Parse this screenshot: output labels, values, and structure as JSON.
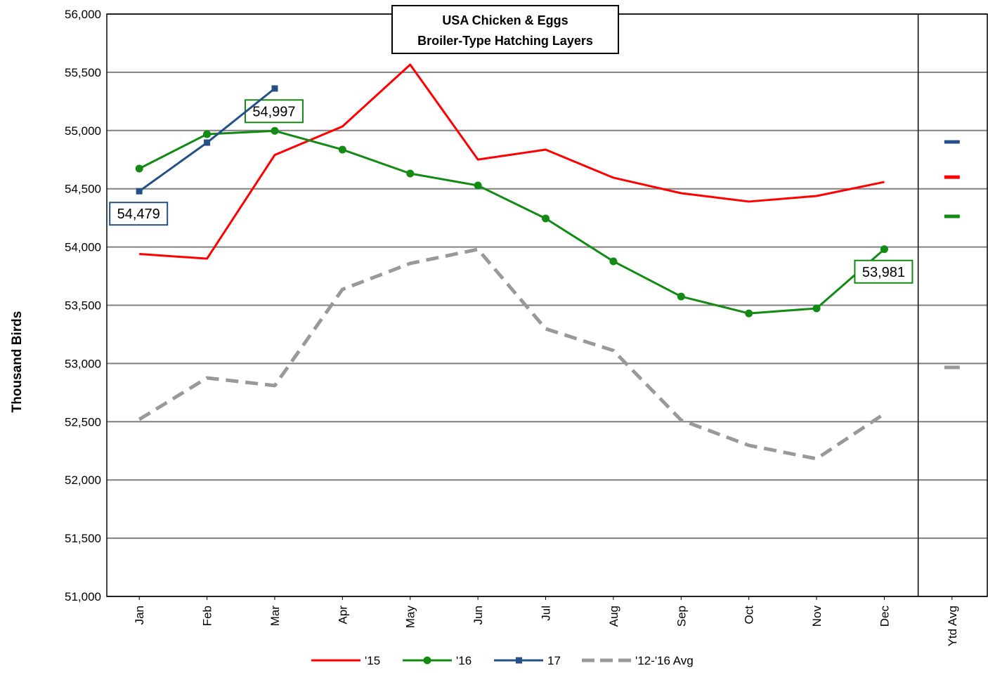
{
  "chart_data": {
    "type": "line",
    "title": "USA Chicken & Eggs",
    "subtitle": "Broiler-Type Hatching Layers",
    "y_label": "Thousand Birds",
    "categories": [
      "Jan",
      "Feb",
      "Mar",
      "Apr",
      "May",
      "Jun",
      "Jul",
      "Aug",
      "Sep",
      "Oct",
      "Nov",
      "Dec",
      "Ytd Avg"
    ],
    "ylim": [
      51000,
      56000
    ],
    "yticks": [
      {
        "value": 51000,
        "label": "51,000"
      },
      {
        "value": 51500,
        "label": "51,500"
      },
      {
        "value": 52000,
        "label": "52,000"
      },
      {
        "value": 52500,
        "label": "52,500"
      },
      {
        "value": 53000,
        "label": "53,000"
      },
      {
        "value": 53500,
        "label": "53,500"
      },
      {
        "value": 54000,
        "label": "54,000"
      },
      {
        "value": 54500,
        "label": "54,500"
      },
      {
        "value": 55000,
        "label": "55,000"
      },
      {
        "value": 55500,
        "label": "55,500"
      },
      {
        "value": 56000,
        "label": "56,000"
      }
    ],
    "grid": true,
    "legend": "bottom",
    "series": [
      {
        "name": "'15",
        "color": "#ff0000",
        "marker": "none",
        "dash": false,
        "values": [
          53940,
          53900,
          54790,
          55035,
          55566,
          54751,
          54836,
          54595,
          54462,
          54390,
          54438,
          54558,
          54600
        ]
      },
      {
        "name": "'16",
        "color": "#138a13",
        "marker": "circle",
        "dash": false,
        "values": [
          54673,
          54969,
          54997,
          54836,
          54631,
          54528,
          54245,
          53877,
          53575,
          53430,
          53473,
          53981,
          54263
        ],
        "value_labels": [
          null,
          null,
          "54,997",
          null,
          null,
          null,
          null,
          null,
          null,
          null,
          null,
          "53,981",
          null
        ]
      },
      {
        "name": "17",
        "color": "#24508a",
        "marker": "square",
        "dash": false,
        "values": [
          54479,
          54896,
          55361,
          null,
          null,
          null,
          null,
          null,
          null,
          null,
          null,
          null,
          54902
        ],
        "value_labels": [
          "54,479",
          null,
          null,
          null,
          null,
          null,
          null,
          null,
          null,
          null,
          null,
          null,
          null
        ]
      },
      {
        "name": "'12-'16 Avg",
        "color": "#999999",
        "marker": "none",
        "dash": true,
        "values": [
          52520,
          52876,
          52810,
          53636,
          53859,
          53980,
          53298,
          53111,
          52514,
          52297,
          52182,
          52568,
          52966
        ]
      }
    ]
  }
}
